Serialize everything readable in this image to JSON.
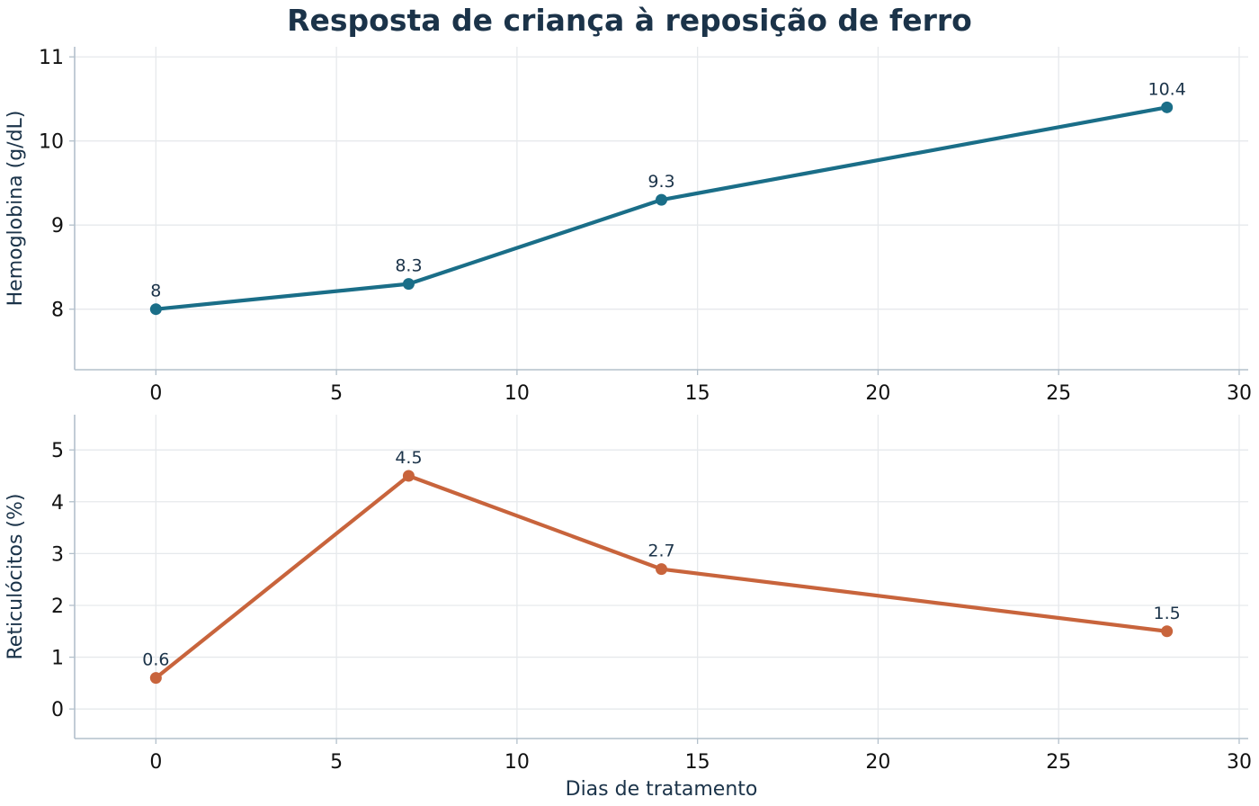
{
  "title": "Resposta de criança à reposição de ferro",
  "chart_data": [
    {
      "type": "line",
      "x": [
        0,
        7,
        14,
        28
      ],
      "values": [
        8,
        8.3,
        9.3,
        10.4
      ],
      "data_labels": [
        "8",
        "8.3",
        "9.3",
        "10.4"
      ],
      "xlabel": "",
      "ylabel": "Hemoglobina (g/dL)",
      "xlim": [
        -2.25,
        30.25
      ],
      "ylim": [
        7.28,
        11.12
      ],
      "xticks": [
        0,
        5,
        10,
        15,
        20,
        25,
        30
      ],
      "xtick_labels": [
        "0",
        "5",
        "10",
        "15",
        "20",
        "25",
        "30"
      ],
      "yticks": [
        8,
        9,
        10,
        11
      ],
      "ytick_labels": [
        "8",
        "9",
        "10",
        "11"
      ],
      "grid": true,
      "color": "#1a6e88"
    },
    {
      "type": "line",
      "x": [
        0,
        7,
        14,
        28
      ],
      "values": [
        0.6,
        4.5,
        2.7,
        1.5
      ],
      "data_labels": [
        "0.6",
        "4.5",
        "2.7",
        "1.5"
      ],
      "xlabel": "Dias de tratamento",
      "ylabel": "Reticulócitos (%)",
      "xlim": [
        -2.25,
        30.25
      ],
      "ylim": [
        -0.57,
        5.68
      ],
      "xticks": [
        0,
        5,
        10,
        15,
        20,
        25,
        30
      ],
      "xtick_labels": [
        "0",
        "5",
        "10",
        "15",
        "20",
        "25",
        "30"
      ],
      "yticks": [
        0,
        1,
        2,
        3,
        4,
        5
      ],
      "ytick_labels": [
        "0",
        "1",
        "2",
        "3",
        "4",
        "5"
      ],
      "grid": true,
      "color": "#c8643c"
    }
  ]
}
